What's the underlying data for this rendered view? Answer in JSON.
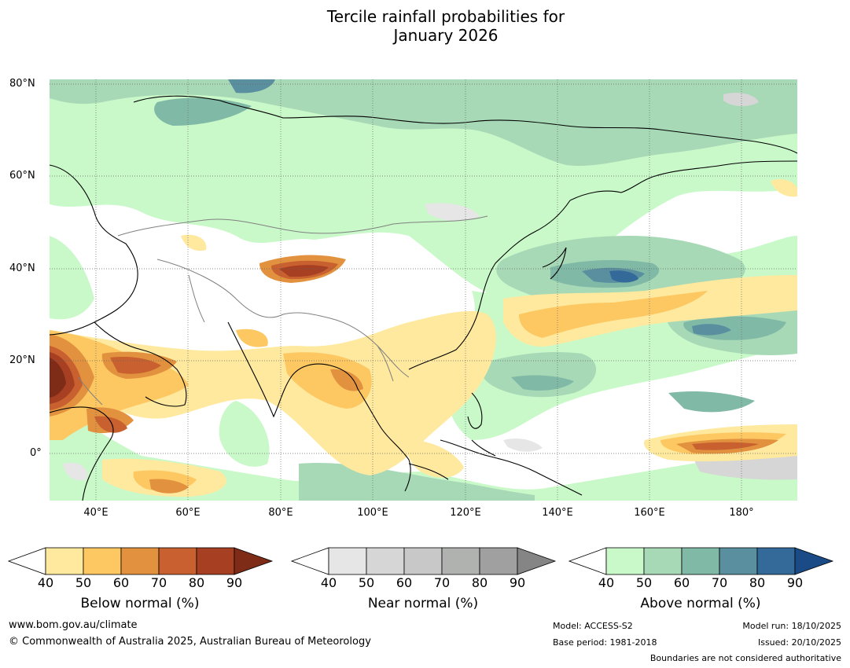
{
  "title_line1": "Tercile rainfall probabilities for",
  "title_line2": "January 2026",
  "lat_labels": [
    "80°N",
    "60°N",
    "40°N",
    "20°N",
    "0°"
  ],
  "lon_labels": [
    "40°E",
    "60°E",
    "80°E",
    "100°E",
    "120°E",
    "140°E",
    "160°E",
    "180°"
  ],
  "colorbars": {
    "below": {
      "label": "Below normal (%)",
      "ticks": [
        "40",
        "50",
        "60",
        "70",
        "80",
        "90"
      ],
      "colors": [
        "#ffffff",
        "#fee99e",
        "#fdc862",
        "#e2923f",
        "#c8602f",
        "#a73f22",
        "#7e2b17"
      ]
    },
    "near": {
      "label": "Near normal (%)",
      "ticks": [
        "40",
        "50",
        "60",
        "70",
        "80",
        "90"
      ],
      "colors": [
        "#ffffff",
        "#e6e6e6",
        "#d6d6d6",
        "#c8c8c8",
        "#b0b2b0",
        "#a0a0a0",
        "#858585"
      ]
    },
    "above": {
      "label": "Above normal (%)",
      "ticks": [
        "40",
        "50",
        "60",
        "70",
        "80",
        "90"
      ],
      "colors": [
        "#ffffff",
        "#c9f9c9",
        "#a8d9b7",
        "#80b9a6",
        "#5a8fa0",
        "#336a9a",
        "#1b4b86"
      ]
    }
  },
  "footer": {
    "website": "www.bom.gov.au/climate",
    "copyright": "© Commonwealth of Australia 2025, Australian Bureau of Meteorology",
    "model": "Model: ACCESS-S2",
    "base_period": "Base period: 1981-2018",
    "model_run": "Model run: 18/10/2025",
    "issued": "Issued: 20/10/2025",
    "disclaimer": "Boundaries are not considered authoritative"
  }
}
